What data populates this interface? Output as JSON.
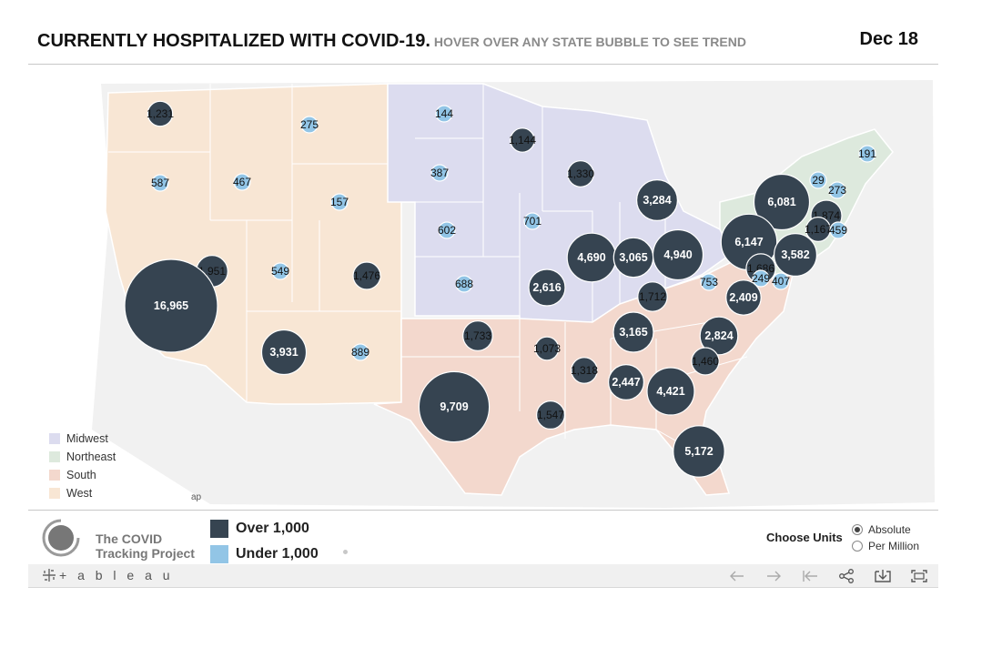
{
  "header": {
    "title": "CURRENTLY HOSPITALIZED WITH COVID-19.",
    "subtitle": "HOVER OVER ANY STATE BUBBLE TO SEE TREND",
    "date": "Dec 18"
  },
  "colors": {
    "over": "#364451",
    "under": "#92c5e6",
    "midwest": "#dcdcef",
    "northeast": "#dde9dd",
    "south": "#f3d8cd",
    "west": "#f8e6d4"
  },
  "region_legend": [
    {
      "label": "Midwest",
      "color": "#dcdcef"
    },
    {
      "label": "Northeast",
      "color": "#dde9dd"
    },
    {
      "label": "South",
      "color": "#f3d8cd"
    },
    {
      "label": "West",
      "color": "#f8e6d4"
    }
  ],
  "map_credit": "ap",
  "size_legend": [
    {
      "label": "Over 1,000",
      "color": "#364451"
    },
    {
      "label": "Under 1,000",
      "color": "#92c5e6"
    }
  ],
  "logo": {
    "line1": "The COVID",
    "line2": "Tracking Project"
  },
  "units": {
    "label": "Choose Units",
    "options": [
      "Absolute",
      "Per Million"
    ],
    "selected": "Absolute"
  },
  "toolbar": {
    "brand": "+ a b l e a u",
    "icons": [
      "undo-icon",
      "redo-icon",
      "revert-icon",
      "share-icon",
      "download-icon",
      "fullscreen-icon"
    ]
  },
  "bubbles": [
    {
      "label": "1,231",
      "value": 1231
    },
    {
      "label": "275",
      "value": 275
    },
    {
      "label": "144",
      "value": 144
    },
    {
      "label": "1,144",
      "value": 1144
    },
    {
      "label": "587",
      "value": 587
    },
    {
      "label": "467",
      "value": 467
    },
    {
      "label": "387",
      "value": 387
    },
    {
      "label": "1,330",
      "value": 1330
    },
    {
      "label": "191",
      "value": 191
    },
    {
      "label": "157",
      "value": 157
    },
    {
      "label": "3,284",
      "value": 3284
    },
    {
      "label": "6,081",
      "value": 6081
    },
    {
      "label": "29",
      "value": 29
    },
    {
      "label": "273",
      "value": 273
    },
    {
      "label": "602",
      "value": 602
    },
    {
      "label": "701",
      "value": 701
    },
    {
      "label": "1,874",
      "value": 1874
    },
    {
      "label": "1,167",
      "value": 1167
    },
    {
      "label": "459",
      "value": 459
    },
    {
      "label": "6,147",
      "value": 6147
    },
    {
      "label": "4,690",
      "value": 4690
    },
    {
      "label": "3,065",
      "value": 3065
    },
    {
      "label": "4,940",
      "value": 4940
    },
    {
      "label": "3,582",
      "value": 3582
    },
    {
      "label": "1,951",
      "value": 1951
    },
    {
      "label": "549",
      "value": 549
    },
    {
      "label": "1,476",
      "value": 1476
    },
    {
      "label": "1,686",
      "value": 1686
    },
    {
      "label": "249",
      "value": 249
    },
    {
      "label": "407",
      "value": 407
    },
    {
      "label": "688",
      "value": 688
    },
    {
      "label": "2,616",
      "value": 2616
    },
    {
      "label": "753",
      "value": 753
    },
    {
      "label": "2,409",
      "value": 2409
    },
    {
      "label": "1,712",
      "value": 1712
    },
    {
      "label": "16,965",
      "value": 16965
    },
    {
      "label": "3,165",
      "value": 3165
    },
    {
      "label": "2,824",
      "value": 2824
    },
    {
      "label": "1,733",
      "value": 1733
    },
    {
      "label": "3,931",
      "value": 3931
    },
    {
      "label": "889",
      "value": 889
    },
    {
      "label": "1,073",
      "value": 1073
    },
    {
      "label": "1,460",
      "value": 1460
    },
    {
      "label": "1,318",
      "value": 1318
    },
    {
      "label": "2,447",
      "value": 2447
    },
    {
      "label": "4,421",
      "value": 4421
    },
    {
      "label": "9,709",
      "value": 9709
    },
    {
      "label": "1,547",
      "value": 1547
    },
    {
      "label": "5,172",
      "value": 5172
    }
  ]
}
